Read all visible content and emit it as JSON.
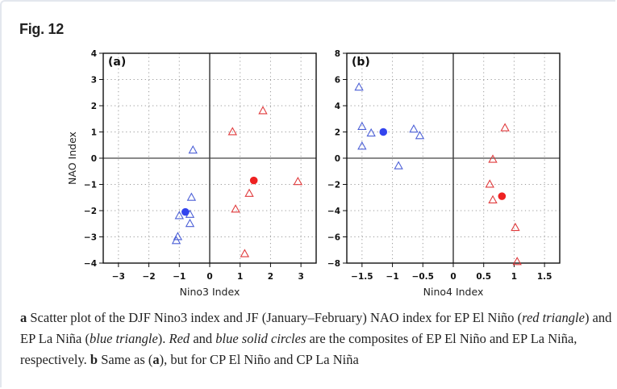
{
  "figure": {
    "title": "Fig. 12",
    "caption": {
      "parts": [
        {
          "text": "a",
          "style": "bold"
        },
        {
          "text": " Scatter plot of the DJF Nino3 index and JF (January–February) NAO index for EP El Niño (",
          "style": "normal"
        },
        {
          "text": "red triangle",
          "style": "italic"
        },
        {
          "text": ") and EP La Niña (",
          "style": "normal"
        },
        {
          "text": "blue triangle",
          "style": "italic"
        },
        {
          "text": "). ",
          "style": "normal"
        },
        {
          "text": "Red",
          "style": "italic"
        },
        {
          "text": " and ",
          "style": "normal"
        },
        {
          "text": "blue solid circles",
          "style": "italic"
        },
        {
          "text": " are the composites of EP El Niño and EP La Niña, respectively. ",
          "style": "normal"
        },
        {
          "text": "b",
          "style": "bold"
        },
        {
          "text": " Same as (",
          "style": "normal"
        },
        {
          "text": "a",
          "style": "bold"
        },
        {
          "text": "), but for CP El Niño and CP La Niña",
          "style": "normal"
        }
      ]
    }
  },
  "colors": {
    "el_nino": "#e0393b",
    "la_nina": "#4b5fd6",
    "el_nino_composite": "#ee2222",
    "la_nina_composite": "#3344ee",
    "axis": "#111111",
    "grid": "#9a9a9a"
  },
  "chart_data": [
    {
      "type": "scatter",
      "panel_label": "(a)",
      "title": "",
      "xlabel": "Nino3  Index",
      "ylabel": "NAO  Index",
      "xlim": [
        -3.5,
        3.5
      ],
      "ylim": [
        -4,
        4
      ],
      "xticks": [
        -3,
        -2,
        -1,
        0,
        1,
        2,
        3
      ],
      "xtick_labels": [
        "−3",
        "−2",
        "−1",
        "0",
        "1",
        "2",
        "3"
      ],
      "yticks": [
        -4,
        -3,
        -2,
        -1,
        0,
        1,
        2,
        3,
        4
      ],
      "ytick_labels": [
        "−4",
        "−3",
        "−2",
        "−1",
        "0",
        "1",
        "2",
        "3",
        "4"
      ],
      "grid": true,
      "zero_lines": true,
      "series": [
        {
          "name": "EP El Niño",
          "marker": "open-triangle",
          "color_key": "el_nino",
          "points": [
            [
              0.75,
              1.0
            ],
            [
              1.75,
              1.8
            ],
            [
              2.9,
              -0.9
            ],
            [
              1.3,
              -1.35
            ],
            [
              0.85,
              -1.95
            ],
            [
              1.15,
              -3.65
            ]
          ]
        },
        {
          "name": "EP La Niña",
          "marker": "open-triangle",
          "color_key": "la_nina",
          "points": [
            [
              -0.55,
              0.3
            ],
            [
              -0.6,
              -1.5
            ],
            [
              -1.0,
              -2.2
            ],
            [
              -0.65,
              -2.15
            ],
            [
              -0.65,
              -2.5
            ],
            [
              -1.05,
              -3.0
            ],
            [
              -1.1,
              -3.15
            ]
          ]
        },
        {
          "name": "EP El Niño composite",
          "marker": "filled-circle",
          "color_key": "el_nino_composite",
          "points": [
            [
              1.45,
              -0.85
            ]
          ]
        },
        {
          "name": "EP La Niña composite",
          "marker": "filled-circle",
          "color_key": "la_nina_composite",
          "points": [
            [
              -0.8,
              -2.05
            ]
          ]
        }
      ]
    },
    {
      "type": "scatter",
      "panel_label": "(b)",
      "title": "",
      "xlabel": "Nino4  Index",
      "ylabel": "",
      "xlim": [
        -1.75,
        1.75
      ],
      "ylim": [
        -8,
        8
      ],
      "xticks": [
        -1.5,
        -1,
        -0.5,
        0,
        0.5,
        1,
        1.5
      ],
      "xtick_labels": [
        "−1.5",
        "−1",
        "−0.5",
        "0",
        "0.5",
        "1",
        "1.5"
      ],
      "yticks": [
        -8,
        -6,
        -4,
        -2,
        0,
        2,
        4,
        6,
        8
      ],
      "ytick_labels": [
        "−8",
        "−6",
        "−4",
        "−2",
        "0",
        "2",
        "4",
        "6",
        "8"
      ],
      "grid": true,
      "zero_lines": true,
      "series": [
        {
          "name": "CP El Niño",
          "marker": "open-triangle",
          "color_key": "el_nino",
          "points": [
            [
              0.85,
              2.3
            ],
            [
              0.65,
              -0.1
            ],
            [
              0.6,
              -2.0
            ],
            [
              0.65,
              -3.2
            ],
            [
              1.02,
              -5.3
            ],
            [
              1.05,
              -7.9
            ]
          ]
        },
        {
          "name": "CP La Niña",
          "marker": "open-triangle",
          "color_key": "la_nina",
          "points": [
            [
              -1.55,
              5.4
            ],
            [
              -1.5,
              2.4
            ],
            [
              -1.35,
              1.9
            ],
            [
              -1.5,
              0.9
            ],
            [
              -0.65,
              2.2
            ],
            [
              -0.55,
              1.7
            ],
            [
              -0.9,
              -0.6
            ]
          ]
        },
        {
          "name": "CP El Niño composite",
          "marker": "filled-circle",
          "color_key": "el_nino_composite",
          "points": [
            [
              0.8,
              -2.9
            ]
          ]
        },
        {
          "name": "CP La Niña composite",
          "marker": "filled-circle",
          "color_key": "la_nina_composite",
          "points": [
            [
              -1.15,
              2.0
            ]
          ]
        }
      ]
    }
  ]
}
